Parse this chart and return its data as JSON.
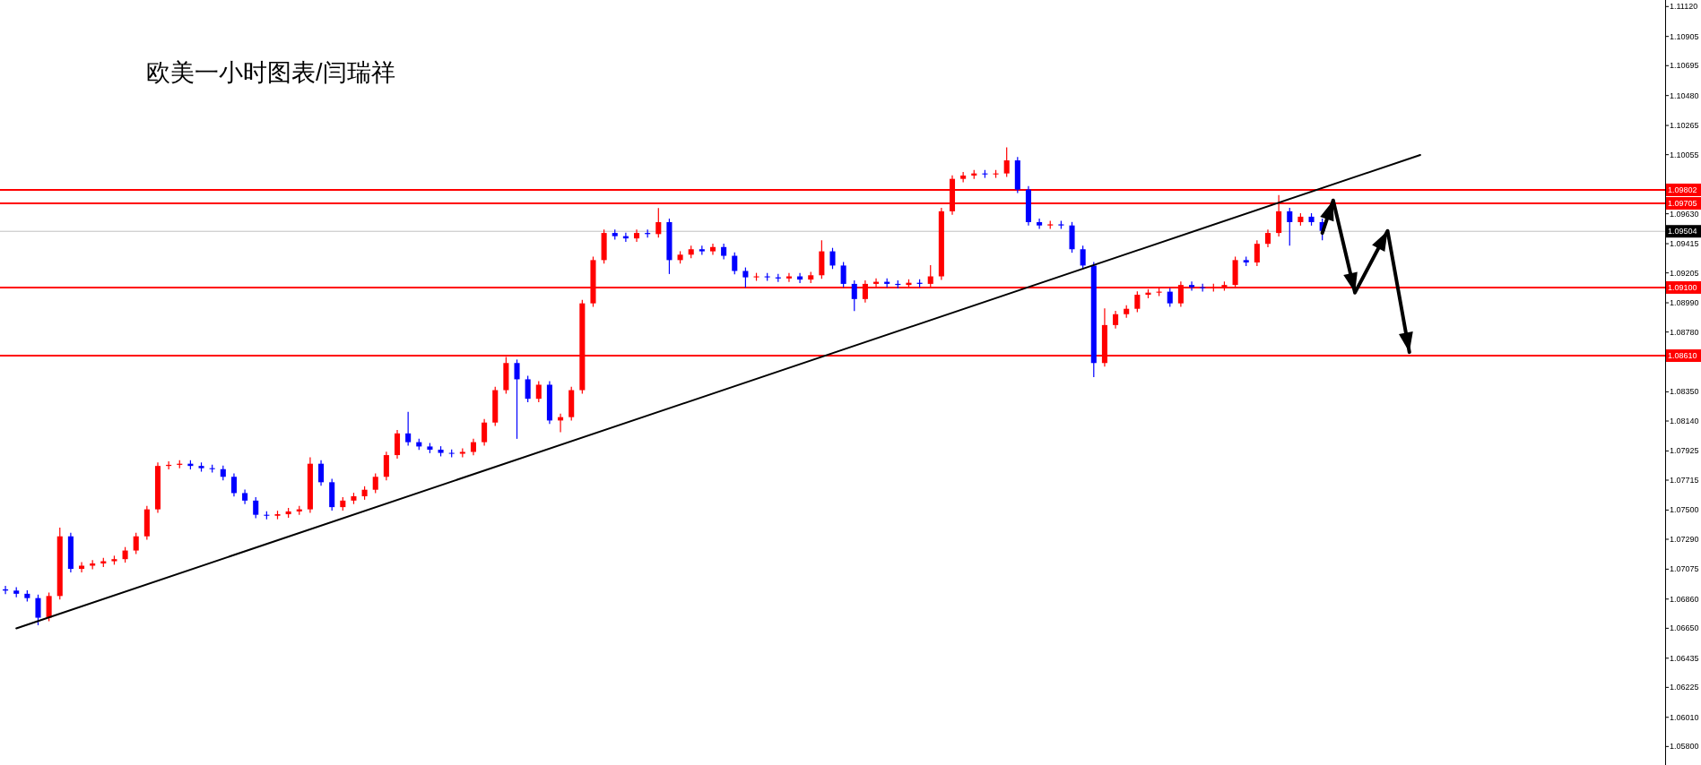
{
  "chart_data": {
    "type": "candlestick",
    "title": "欧美一小时图表/闫瑞祥",
    "categories": [
      null,
      null,
      null,
      null,
      null,
      null,
      null,
      null,
      null,
      null,
      null,
      null,
      null,
      null,
      null,
      null,
      null,
      null,
      null,
      null,
      null,
      null,
      null,
      null,
      null,
      null,
      null,
      null,
      null,
      null,
      null,
      null,
      null,
      null,
      null,
      null,
      null,
      null,
      null,
      null,
      null,
      null,
      null,
      null,
      null,
      null,
      null,
      null,
      null,
      null,
      null,
      null,
      null,
      null,
      null,
      null,
      null,
      null,
      null,
      null,
      null,
      null,
      null,
      null,
      null,
      null,
      null,
      null,
      null,
      null,
      null,
      null,
      null,
      null,
      null,
      null,
      null,
      null,
      null,
      null,
      null,
      null,
      null,
      null,
      null,
      null,
      null,
      null,
      null,
      null,
      null,
      null,
      null,
      null,
      null,
      null,
      null,
      null,
      null,
      null,
      null,
      null,
      null,
      null,
      null,
      null,
      null,
      null,
      null,
      null,
      null,
      null,
      null,
      null,
      null,
      null,
      null,
      null,
      null,
      null,
      null,
      null,
      null,
      null,
      null,
      null,
      null,
      null,
      null,
      null,
      null,
      null,
      null,
      null,
      null,
      null,
      null,
      null,
      null,
      null,
      null,
      null,
      null,
      null,
      null,
      null,
      null,
      null,
      null,
      null,
      null,
      null,
      null
    ],
    "ohlc": [
      [
        1.0693,
        1.06955,
        1.06896,
        1.06921
      ],
      [
        1.06921,
        1.06946,
        1.06873,
        1.06898
      ],
      [
        1.06898,
        1.06923,
        1.06842,
        1.06867
      ],
      [
        1.06867,
        1.06892,
        1.06672,
        1.06726
      ],
      [
        1.06726,
        1.06907,
        1.06701,
        1.06882
      ],
      [
        1.06882,
        1.07373,
        1.06857,
        1.07311
      ],
      [
        1.07311,
        1.07336,
        1.07052,
        1.07077
      ],
      [
        1.07077,
        1.07125,
        1.07052,
        1.071
      ],
      [
        1.071,
        1.07141,
        1.07075,
        1.07116
      ],
      [
        1.07116,
        1.07157,
        1.07091,
        1.07132
      ],
      [
        1.07132,
        1.07172,
        1.07107,
        1.07147
      ],
      [
        1.07147,
        1.07234,
        1.07122,
        1.07209
      ],
      [
        1.07209,
        1.07336,
        1.07184,
        1.07311
      ],
      [
        1.07311,
        1.0753,
        1.07286,
        1.07505
      ],
      [
        1.07505,
        1.07842,
        1.0748,
        1.07817
      ],
      [
        1.07817,
        1.0785,
        1.07792,
        1.07825
      ],
      [
        1.07825,
        1.07858,
        1.078,
        1.07833
      ],
      [
        1.07833,
        1.07858,
        1.07792,
        1.07817
      ],
      [
        1.07817,
        1.07842,
        1.07776,
        1.07801
      ],
      [
        1.07801,
        1.07826,
        1.07769,
        1.07794
      ],
      [
        1.07794,
        1.07819,
        1.07714,
        1.07739
      ],
      [
        1.07739,
        1.07764,
        1.07597,
        1.07622
      ],
      [
        1.07622,
        1.07647,
        1.07543,
        1.07568
      ],
      [
        1.07568,
        1.07593,
        1.07441,
        1.07466
      ],
      [
        1.07466,
        1.07491,
        1.07434,
        1.07459
      ],
      [
        1.07459,
        1.07495,
        1.07434,
        1.0747
      ],
      [
        1.0747,
        1.07515,
        1.07445,
        1.0749
      ],
      [
        1.0749,
        1.0753,
        1.07465,
        1.07505
      ],
      [
        1.07505,
        1.07879,
        1.0748,
        1.07833
      ],
      [
        1.07833,
        1.07858,
        1.07675,
        1.077
      ],
      [
        1.077,
        1.07725,
        1.07496,
        1.07521
      ],
      [
        1.07521,
        1.07593,
        1.07496,
        1.07568
      ],
      [
        1.07568,
        1.07624,
        1.07543,
        1.07599
      ],
      [
        1.07599,
        1.07671,
        1.07574,
        1.07646
      ],
      [
        1.07646,
        1.07764,
        1.07621,
        1.07739
      ],
      [
        1.07739,
        1.0792,
        1.07714,
        1.07895
      ],
      [
        1.07895,
        1.08076,
        1.0787,
        1.08051
      ],
      [
        1.08051,
        1.08206,
        1.07963,
        1.07988
      ],
      [
        1.07988,
        1.08013,
        1.07932,
        1.07957
      ],
      [
        1.07957,
        1.07982,
        1.07909,
        1.07934
      ],
      [
        1.07934,
        1.07959,
        1.07886,
        1.07911
      ],
      [
        1.07911,
        1.07936,
        1.0788,
        1.07905
      ],
      [
        1.07905,
        1.07943,
        1.0788,
        1.07918
      ],
      [
        1.07918,
        1.08013,
        1.07893,
        1.07988
      ],
      [
        1.07988,
        1.08154,
        1.07963,
        1.08129
      ],
      [
        1.08129,
        1.08387,
        1.08104,
        1.08362
      ],
      [
        1.08362,
        1.086,
        1.08337,
        1.08557
      ],
      [
        1.08557,
        1.08582,
        1.08012,
        1.0844
      ],
      [
        1.0844,
        1.08465,
        1.08275,
        1.083
      ],
      [
        1.083,
        1.08426,
        1.08275,
        1.08401
      ],
      [
        1.08401,
        1.08426,
        1.08119,
        1.08144
      ],
      [
        1.08144,
        1.08193,
        1.0806,
        1.08168
      ],
      [
        1.08168,
        1.08387,
        1.08143,
        1.08362
      ],
      [
        1.08362,
        1.09011,
        1.08337,
        1.08986
      ],
      [
        1.08986,
        1.09322,
        1.08961,
        1.09297
      ],
      [
        1.09297,
        1.09517,
        1.09272,
        1.09492
      ],
      [
        1.09492,
        1.09517,
        1.09444,
        1.09469
      ],
      [
        1.09469,
        1.09494,
        1.09428,
        1.09453
      ],
      [
        1.09453,
        1.09517,
        1.09428,
        1.09492
      ],
      [
        1.09492,
        1.09517,
        1.09459,
        1.09484
      ],
      [
        1.09484,
        1.09671,
        1.09459,
        1.0957
      ],
      [
        1.0957,
        1.09595,
        1.09197,
        1.09297
      ],
      [
        1.09297,
        1.09361,
        1.09272,
        1.09336
      ],
      [
        1.09336,
        1.094,
        1.09311,
        1.09375
      ],
      [
        1.09375,
        1.094,
        1.09335,
        1.0936
      ],
      [
        1.0936,
        1.09416,
        1.09335,
        1.09391
      ],
      [
        1.09391,
        1.09416,
        1.09303,
        1.09328
      ],
      [
        1.09328,
        1.09353,
        1.09194,
        1.09219
      ],
      [
        1.09219,
        1.09244,
        1.091,
        1.09173
      ],
      [
        1.09173,
        1.09205,
        1.09148,
        1.0918
      ],
      [
        1.0918,
        1.09205,
        1.09148,
        1.09173
      ],
      [
        1.09173,
        1.09198,
        1.0914,
        1.09165
      ],
      [
        1.09165,
        1.09205,
        1.0914,
        1.0918
      ],
      [
        1.0918,
        1.09205,
        1.09132,
        1.09157
      ],
      [
        1.09157,
        1.09213,
        1.09132,
        1.09188
      ],
      [
        1.09188,
        1.0944,
        1.09163,
        1.0936
      ],
      [
        1.0936,
        1.09385,
        1.09233,
        1.09258
      ],
      [
        1.09258,
        1.09283,
        1.09101,
        1.09126
      ],
      [
        1.09126,
        1.09151,
        1.08931,
        1.09017
      ],
      [
        1.09017,
        1.09151,
        1.08992,
        1.09126
      ],
      [
        1.09126,
        1.09166,
        1.09101,
        1.09141
      ],
      [
        1.09141,
        1.09166,
        1.09101,
        1.09126
      ],
      [
        1.09126,
        1.09151,
        1.09093,
        1.09118
      ],
      [
        1.09118,
        1.09159,
        1.09093,
        1.09134
      ],
      [
        1.09134,
        1.09159,
        1.09101,
        1.09126
      ],
      [
        1.09126,
        1.0926,
        1.09101,
        1.0918
      ],
      [
        1.0918,
        1.09673,
        1.09155,
        1.09648
      ],
      [
        1.09648,
        1.09906,
        1.09623,
        1.09881
      ],
      [
        1.09881,
        1.0993,
        1.09856,
        1.09905
      ],
      [
        1.09905,
        1.09945,
        1.0988,
        1.0992
      ],
      [
        1.0992,
        1.09945,
        1.09888,
        1.09913
      ],
      [
        1.09913,
        1.09945,
        1.09888,
        1.0992
      ],
      [
        1.0992,
        1.10107,
        1.09895,
        1.10014
      ],
      [
        1.10014,
        1.10039,
        1.09779,
        1.09804
      ],
      [
        1.09804,
        1.09829,
        1.09545,
        1.0957
      ],
      [
        1.0957,
        1.09595,
        1.09521,
        1.09546
      ],
      [
        1.09546,
        1.09579,
        1.09521,
        1.09554
      ],
      [
        1.09554,
        1.09579,
        1.09521,
        1.09546
      ],
      [
        1.09546,
        1.09571,
        1.0935,
        1.09375
      ],
      [
        1.09375,
        1.094,
        1.09233,
        1.09258
      ],
      [
        1.09258,
        1.09283,
        1.08456,
        1.08557
      ],
      [
        1.08557,
        1.0895,
        1.08532,
        1.0883
      ],
      [
        1.0883,
        1.08933,
        1.08805,
        1.08908
      ],
      [
        1.08908,
        1.08972,
        1.08883,
        1.08947
      ],
      [
        1.08947,
        1.09073,
        1.08922,
        1.09048
      ],
      [
        1.09048,
        1.09088,
        1.09023,
        1.09063
      ],
      [
        1.09063,
        1.09095,
        1.09038,
        1.0907
      ],
      [
        1.0907,
        1.09095,
        1.08961,
        1.08986
      ],
      [
        1.08986,
        1.09143,
        1.08961,
        1.09118
      ],
      [
        1.09118,
        1.09143,
        1.09077,
        1.09102
      ],
      [
        1.09102,
        1.09127,
        1.0907,
        1.09095
      ],
      [
        1.09095,
        1.09127,
        1.0907,
        1.09102
      ],
      [
        1.09102,
        1.09143,
        1.09077,
        1.09118
      ],
      [
        1.09118,
        1.09322,
        1.09093,
        1.09297
      ],
      [
        1.09297,
        1.09322,
        1.09255,
        1.0928
      ],
      [
        1.0928,
        1.09439,
        1.09255,
        1.09414
      ],
      [
        1.09414,
        1.09517,
        1.09389,
        1.09492
      ],
      [
        1.09492,
        1.09765,
        1.09467,
        1.09648
      ],
      [
        1.09648,
        1.09673,
        1.094,
        1.0957
      ],
      [
        1.0957,
        1.09634,
        1.09545,
        1.09609
      ],
      [
        1.09609,
        1.09634,
        1.09545,
        1.0957
      ],
      [
        1.0957,
        1.09595,
        1.0944,
        1.09507
      ],
      null,
      null,
      null,
      null,
      null,
      null,
      null,
      null,
      null,
      null,
      null,
      null,
      null,
      null,
      null,
      null,
      null,
      null,
      null,
      null,
      null,
      null,
      null,
      null,
      null,
      null,
      null,
      null,
      null,
      null,
      null
    ],
    "colors": [
      "#0000ff",
      "#0000ff",
      "#0000ff",
      "#0000ff",
      "#ff0000",
      "#ff0000",
      "#0000ff",
      "#ff0000",
      "#ff0000",
      "#ff0000",
      "#ff0000",
      "#ff0000",
      "#ff0000",
      "#ff0000",
      "#ff0000",
      "#ff0000",
      "#ff0000",
      "#0000ff",
      "#0000ff",
      "#0000ff",
      "#0000ff",
      "#0000ff",
      "#0000ff",
      "#0000ff",
      "#0000ff",
      "#ff0000",
      "#ff0000",
      "#ff0000",
      "#ff0000",
      "#0000ff",
      "#0000ff",
      "#ff0000",
      "#ff0000",
      "#ff0000",
      "#ff0000",
      "#ff0000",
      "#ff0000",
      "#0000ff",
      "#0000ff",
      "#0000ff",
      "#0000ff",
      "#0000ff",
      "#ff0000",
      "#ff0000",
      "#ff0000",
      "#ff0000",
      "#ff0000",
      "#0000ff",
      "#0000ff",
      "#ff0000",
      "#0000ff",
      "#ff0000",
      "#ff0000",
      "#ff0000",
      "#ff0000",
      "#ff0000",
      "#0000ff",
      "#0000ff",
      "#ff0000",
      "#0000ff",
      "#ff0000",
      "#0000ff",
      "#ff0000",
      "#ff0000",
      "#0000ff",
      "#ff0000",
      "#0000ff",
      "#0000ff",
      "#0000ff",
      "#ff0000",
      "#0000ff",
      "#0000ff",
      "#ff0000",
      "#0000ff",
      "#ff0000",
      "#ff0000",
      "#0000ff",
      "#0000ff",
      "#0000ff",
      "#ff0000",
      "#ff0000",
      "#0000ff",
      "#0000ff",
      "#ff0000",
      "#0000ff",
      "#ff0000",
      "#ff0000",
      "#ff0000",
      "#ff0000",
      "#ff0000",
      "#0000ff",
      "#ff0000",
      "#ff0000",
      "#0000ff",
      "#0000ff",
      "#0000ff",
      "#ff0000",
      "#0000ff",
      "#0000ff",
      "#0000ff",
      "#0000ff",
      "#ff0000",
      "#ff0000",
      "#ff0000",
      "#ff0000",
      "#ff0000",
      "#ff0000",
      "#0000ff",
      "#ff0000",
      "#0000ff",
      "#0000ff",
      "#ff0000",
      "#ff0000",
      "#ff0000",
      "#0000ff",
      "#ff0000",
      "#ff0000",
      "#ff0000",
      "#0000ff",
      "#ff0000",
      "#0000ff",
      "#0000ff",
      null,
      null,
      null,
      null,
      null,
      null,
      null,
      null,
      null,
      null,
      null,
      null,
      null,
      null,
      null,
      null,
      null,
      null,
      null,
      null,
      null,
      null,
      null,
      null,
      null,
      null,
      null,
      null,
      null,
      null,
      null
    ],
    "series": [
      {
        "type": "line",
        "values": [
          null,
          1.06649,
          null,
          null,
          null,
          null,
          null,
          null,
          null,
          null,
          null,
          null,
          null,
          null,
          null,
          null,
          null,
          null,
          null,
          null,
          null,
          null,
          null,
          null,
          null,
          null,
          null,
          null,
          null,
          null,
          null,
          null,
          null,
          null,
          null,
          null,
          null,
          null,
          null,
          null,
          null,
          null,
          null,
          null,
          null,
          null,
          null,
          null,
          null,
          null,
          null,
          null,
          null,
          null,
          null,
          null,
          null,
          null,
          null,
          null,
          null,
          null,
          null,
          null,
          null,
          null,
          null,
          null,
          null,
          null,
          null,
          null,
          null,
          null,
          null,
          null,
          null,
          null,
          null,
          null,
          null,
          null,
          null,
          null,
          null,
          null,
          null,
          null,
          null,
          null,
          null,
          null,
          null,
          null,
          null,
          null,
          null,
          null,
          null,
          null,
          null,
          null,
          null,
          null,
          null,
          null,
          null,
          null,
          null,
          null,
          null,
          null,
          null,
          null,
          null,
          null,
          null,
          null,
          null,
          null,
          null,
          null,
          null,
          null,
          null,
          null,
          null,
          null,
          null,
          null,
          1.10053,
          null,
          null,
          null,
          null,
          null,
          null,
          null,
          null,
          null,
          null,
          null,
          null,
          null,
          null,
          null,
          null,
          null,
          null,
          null,
          null,
          null,
          null
        ],
        "color": "#000000"
      },
      {
        "type": "line",
        "values": [
          null,
          null,
          null,
          null,
          null,
          null,
          null,
          null,
          null,
          null,
          null,
          null,
          null,
          null,
          null,
          null,
          null,
          null,
          null,
          null,
          null,
          null,
          null,
          null,
          null,
          null,
          null,
          null,
          null,
          null,
          null,
          null,
          null,
          null,
          null,
          null,
          null,
          null,
          null,
          null,
          null,
          null,
          null,
          null,
          null,
          null,
          null,
          null,
          null,
          null,
          null,
          null,
          null,
          null,
          null,
          null,
          null,
          null,
          null,
          null,
          null,
          null,
          null,
          null,
          null,
          null,
          null,
          null,
          null,
          null,
          null,
          null,
          null,
          null,
          null,
          null,
          null,
          null,
          null,
          null,
          null,
          null,
          null,
          null,
          null,
          null,
          null,
          null,
          null,
          null,
          null,
          null,
          null,
          null,
          null,
          null,
          null,
          null,
          null,
          null,
          null,
          null,
          null,
          null,
          null,
          null,
          null,
          null,
          null,
          null,
          null,
          null,
          null,
          null,
          null,
          null,
          null,
          null,
          null,
          null,
          null,
          1.09492,
          1.09726,
          null,
          1.09063,
          null,
          null,
          1.09507,
          null,
          1.08635,
          null,
          null,
          null,
          null,
          null,
          null,
          null,
          null,
          null,
          null,
          null,
          null,
          null,
          null,
          null,
          null,
          null,
          null,
          null,
          null,
          null,
          null,
          null
        ],
        "color": "#000000"
      }
    ],
    "ylim": [
      1.05667,
      1.11167
    ],
    "yticks": [
      {
        "value": 1.1112,
        "label": "1.11120"
      },
      {
        "value": 1.10905,
        "label": "1.10905"
      },
      {
        "value": 1.10695,
        "label": "1.10695"
      },
      {
        "value": 1.1048,
        "label": "1.10480"
      },
      {
        "value": 1.10265,
        "label": "1.10265"
      },
      {
        "value": 1.10055,
        "label": "1.10055"
      },
      {
        "value": 1.0963,
        "label": "1.09630"
      },
      {
        "value": 1.09415,
        "label": "1.09415"
      },
      {
        "value": 1.09205,
        "label": "1.09205"
      },
      {
        "value": 1.0899,
        "label": "1.08990"
      },
      {
        "value": 1.0878,
        "label": "1.08780"
      },
      {
        "value": 1.0835,
        "label": "1.08350"
      },
      {
        "value": 1.0814,
        "label": "1.08140"
      },
      {
        "value": 1.07925,
        "label": "1.07925"
      },
      {
        "value": 1.07715,
        "label": "1.07715"
      },
      {
        "value": 1.075,
        "label": "1.07500"
      },
      {
        "value": 1.0729,
        "label": "1.07290"
      },
      {
        "value": 1.07075,
        "label": "1.07075"
      },
      {
        "value": 1.0686,
        "label": "1.06860"
      },
      {
        "value": 1.0665,
        "label": "1.06650"
      },
      {
        "value": 1.06435,
        "label": "1.06435"
      },
      {
        "value": 1.06225,
        "label": "1.06225"
      },
      {
        "value": 1.0601,
        "label": "1.06010"
      },
      {
        "value": 1.058,
        "label": "1.05800"
      }
    ],
    "ref_lines": [
      {
        "axis": "y",
        "value": 1.09802,
        "label": "1.09802",
        "color": "#ff0000"
      },
      {
        "axis": "y",
        "value": 1.09705,
        "label": "1.09705",
        "color": "#ff0000"
      },
      {
        "axis": "y",
        "value": 1.09504,
        "label": "1.09504",
        "color": "#c0c0c0"
      },
      {
        "axis": "y",
        "value": 1.091,
        "label": "1.09100",
        "color": "#ff0000"
      },
      {
        "axis": "y",
        "value": 1.0861,
        "label": "1.08610",
        "color": "#ff0000"
      }
    ],
    "tick_labels": "y"
  }
}
